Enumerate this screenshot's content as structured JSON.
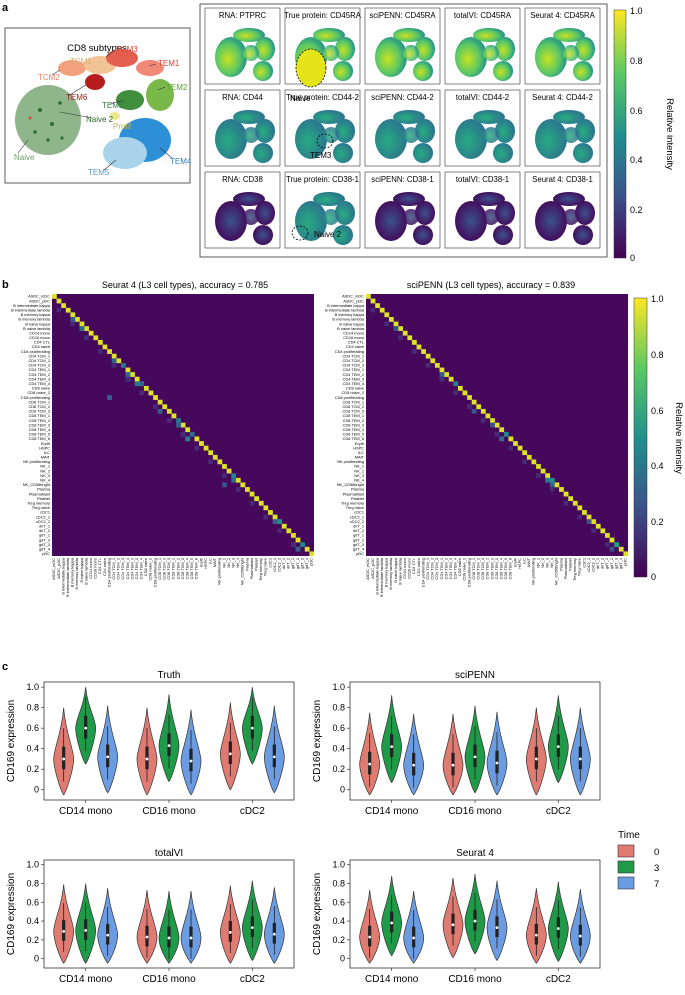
{
  "panel_a": {
    "letter": "a",
    "cd8_title": "CD8 subtypes",
    "cluster_labels": [
      "TCM3",
      "TCM1",
      "TEM1",
      "TCM2",
      "TEM6",
      "TEM2",
      "Naive 2",
      "TEM3",
      "Prolif",
      "Naive",
      "TEM5",
      "TEM4"
    ],
    "umap_titles": [
      [
        "RNA: PTPRC",
        "True protein: CD45RA",
        "sciPENN: CD45RA",
        "totalVI: CD45RA",
        "Seurat 4: CD45RA"
      ],
      [
        "RNA: CD44",
        "True protein: CD44-2",
        "sciPENN: CD44-2",
        "totalVI: CD44-2",
        "Seurat 4: CD44-2"
      ],
      [
        "RNA: CD38",
        "True protein: CD38-1",
        "sciPENN: CD38-1",
        "totalVI: CD38-1",
        "Seurat 4: CD38-1"
      ]
    ],
    "annotations": [
      "Naive",
      "TEM3",
      "Naive 2"
    ],
    "colorbar": {
      "label": "Relative intensity",
      "ticks": [
        "1.0",
        "0.8",
        "0.6",
        "0.4",
        "0.2",
        "0"
      ]
    }
  },
  "panel_b": {
    "letter": "b",
    "left_title": "Seurat 4 (L3 cell types), accuracy = 0.785",
    "right_title": "sciPENN (L3 cell types), accuracy = 0.839",
    "cell_types": [
      "ASDC_mDC",
      "ASDC_pDC",
      "B intermediate kappa",
      "B intermediate lambda",
      "B memory kappa",
      "B memory lambda",
      "B naive kappa",
      "B naive lambda",
      "CD14 mono",
      "CD16 mono",
      "CD4 CTL",
      "CD4 naive",
      "CD4 proliferating",
      "CD4 TCM_1",
      "CD4 TCM_2",
      "CD4 TCM_3",
      "CD4 TEM_1",
      "CD4 TEM_2",
      "CD4 TEM_3",
      "CD4 TEM_4",
      "CD8 naive",
      "CD8 naive_2",
      "CD8 proliferating",
      "CD8 TCM_1",
      "CD8 TCM_2",
      "CD8 TCM_3",
      "CD8 TEM_1",
      "CD8 TEM_2",
      "CD8 TEM_3",
      "CD8 TEM_4",
      "CD8 TEM_5",
      "CD8 TEM_6",
      "Eryth",
      "HSPC",
      "ILC",
      "MAIT",
      "NK proliferating",
      "NK_1",
      "NK_2",
      "NK_3",
      "NK_4",
      "NK_CD56bright",
      "Plasma",
      "Plasmablast",
      "Platelet",
      "Treg memory",
      "Treg naive",
      "cDC1",
      "cDC2_1",
      "cDC2_2",
      "dnT_1",
      "dnT_2",
      "gdT_1",
      "gdT_2",
      "gdT_3",
      "gdT_4",
      "pDC"
    ],
    "colorbar": {
      "label": "Relative intensity",
      "ticks": [
        "1.0",
        "0.8",
        "0.6",
        "0.4",
        "0.2",
        "0"
      ]
    }
  },
  "panel_c": {
    "letter": "c",
    "ylabel": "CD169 expression",
    "categories": [
      "CD14 mono",
      "CD16 mono",
      "cDC2"
    ],
    "legend": {
      "title": "Time",
      "items": [
        {
          "label": "0",
          "color": "#e07b72"
        },
        {
          "label": "3",
          "color": "#1f9a48"
        },
        {
          "label": "7",
          "color": "#6b9be0"
        }
      ]
    }
  },
  "chart_data": [
    {
      "type": "heatmap",
      "title": "Seurat 4 (L3 cell types), accuracy = 0.785",
      "accuracy": 0.785,
      "rows": "panel_b.cell_types",
      "cols": "panel_b.cell_types",
      "zlim": [
        0,
        1
      ],
      "colormap": "viridis",
      "offdiag": [
        [
          18,
          16,
          0.45
        ],
        [
          19,
          18,
          0.4
        ],
        [
          17,
          16,
          0.35
        ],
        [
          31,
          29,
          0.45
        ],
        [
          30,
          28,
          0.35
        ],
        [
          28,
          27,
          0.3
        ],
        [
          5,
          4,
          0.3
        ],
        [
          7,
          6,
          0.35
        ],
        [
          41,
          37,
          0.25
        ],
        [
          40,
          39,
          0.35
        ],
        [
          55,
          53,
          0.3
        ],
        [
          54,
          52,
          0.35
        ],
        [
          49,
          48,
          0.3
        ],
        [
          14,
          13,
          0.3
        ],
        [
          25,
          23,
          0.3
        ],
        [
          22,
          12,
          0.3
        ]
      ],
      "weak_diag": [
        [
          15,
          0.4
        ],
        [
          19,
          0.35
        ],
        [
          27,
          0.4
        ],
        [
          30,
          0.35
        ],
        [
          39,
          0.45
        ],
        [
          49,
          0.5
        ],
        [
          54,
          0.45
        ]
      ]
    },
    {
      "type": "heatmap",
      "title": "sciPENN (L3 cell types), accuracy = 0.839",
      "accuracy": 0.839,
      "rows": "panel_b.cell_types",
      "cols": "panel_b.cell_types",
      "zlim": [
        0,
        1
      ],
      "colormap": "viridis",
      "offdiag": [
        [
          18,
          16,
          0.35
        ],
        [
          17,
          16,
          0.3
        ],
        [
          31,
          29,
          0.35
        ],
        [
          28,
          27,
          0.25
        ],
        [
          7,
          6,
          0.25
        ],
        [
          40,
          39,
          0.4
        ],
        [
          41,
          40,
          0.3
        ],
        [
          55,
          53,
          0.25
        ],
        [
          49,
          48,
          0.25
        ],
        [
          25,
          23,
          0.25
        ]
      ],
      "weak_diag": [
        [
          19,
          0.45
        ],
        [
          30,
          0.45
        ],
        [
          40,
          0.5
        ],
        [
          54,
          0.55
        ]
      ]
    },
    {
      "type": "violin",
      "title": "Truth",
      "ylabel": "CD169 expression",
      "categories": [
        "CD14 mono",
        "CD16 mono",
        "cDC2"
      ],
      "series": [
        {
          "name": "0",
          "medians": [
            0.3,
            0.3,
            0.35
          ]
        },
        {
          "name": "3",
          "medians": [
            0.6,
            0.43,
            0.6
          ]
        },
        {
          "name": "7",
          "medians": [
            0.32,
            0.28,
            0.32
          ]
        }
      ],
      "ylim": [
        -0.1,
        1.05
      ],
      "yticks": [
        "0",
        "0.2",
        "0.4",
        "0.6",
        "0.8",
        "1.0"
      ]
    },
    {
      "type": "violin",
      "title": "sciPENN",
      "ylabel": "CD169 expression",
      "categories": [
        "CD14 mono",
        "CD16 mono",
        "cDC2"
      ],
      "series": [
        {
          "name": "0",
          "medians": [
            0.25,
            0.24,
            0.3
          ]
        },
        {
          "name": "3",
          "medians": [
            0.42,
            0.32,
            0.42
          ]
        },
        {
          "name": "7",
          "medians": [
            0.24,
            0.26,
            0.3
          ]
        }
      ],
      "ylim": [
        -0.1,
        1.05
      ],
      "yticks": [
        "0",
        "0.2",
        "0.4",
        "0.6",
        "0.8",
        "1.0"
      ]
    },
    {
      "type": "violin",
      "title": "totalVI",
      "ylabel": "CD169 expression",
      "categories": [
        "CD14 mono",
        "CD16 mono",
        "cDC2"
      ],
      "series": [
        {
          "name": "0",
          "medians": [
            0.29,
            0.23,
            0.28
          ]
        },
        {
          "name": "3",
          "medians": [
            0.3,
            0.22,
            0.33
          ]
        },
        {
          "name": "7",
          "medians": [
            0.25,
            0.22,
            0.26
          ]
        }
      ],
      "ylim": [
        -0.1,
        1.05
      ],
      "yticks": [
        "0",
        "0.2",
        "0.4",
        "0.6",
        "0.8",
        "1.0"
      ]
    },
    {
      "type": "violin",
      "title": "Seurat 4",
      "ylabel": "CD169 expression",
      "categories": [
        "CD14 mono",
        "CD16 mono",
        "cDC2"
      ],
      "series": [
        {
          "name": "0",
          "medians": [
            0.23,
            0.36,
            0.25
          ]
        },
        {
          "name": "3",
          "medians": [
            0.38,
            0.4,
            0.32
          ]
        },
        {
          "name": "7",
          "medians": [
            0.22,
            0.33,
            0.24
          ]
        }
      ],
      "ylim": [
        -0.1,
        1.05
      ],
      "yticks": [
        "0",
        "0.2",
        "0.4",
        "0.6",
        "0.8",
        "1.0"
      ]
    }
  ]
}
